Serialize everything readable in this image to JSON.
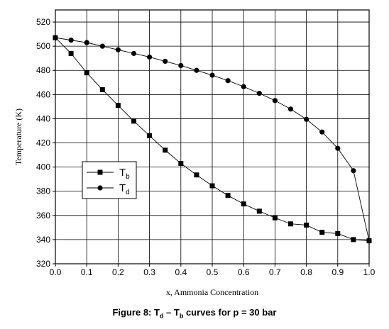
{
  "chart_data": {
    "type": "line",
    "xlabel": "x, Ammonia Concentration",
    "ylabel": "Temperature (K)",
    "xlim": [
      0.0,
      1.0
    ],
    "ylim": [
      320,
      530
    ],
    "xticks": [
      0.0,
      0.1,
      0.2,
      0.3,
      0.4,
      0.5,
      0.6,
      0.7,
      0.8,
      0.9,
      1.0
    ],
    "xtick_labels": [
      "0.0",
      "0.1",
      "0.2",
      "0.3",
      "0.4",
      "0.5",
      "0.6",
      "0.7",
      "0.8",
      "0.9",
      "1.0"
    ],
    "yticks": [
      320,
      340,
      360,
      380,
      400,
      420,
      440,
      460,
      480,
      500,
      520
    ],
    "grid": true,
    "legend_placement": "center-left",
    "series": [
      {
        "name": "Tb",
        "legend_main": "T",
        "legend_sub": "b",
        "marker": "square",
        "x": [
          0.0,
          0.05,
          0.1,
          0.15,
          0.2,
          0.25,
          0.3,
          0.35,
          0.4,
          0.45,
          0.5,
          0.55,
          0.6,
          0.65,
          0.7,
          0.75,
          0.8,
          0.85,
          0.9,
          0.95,
          1.0
        ],
        "y": [
          507,
          494,
          478,
          464,
          451,
          438,
          426,
          414,
          403,
          393.5,
          384.5,
          376.5,
          369.5,
          363.5,
          358,
          353,
          352,
          346,
          345,
          340,
          339
        ]
      },
      {
        "name": "Td",
        "legend_main": "T",
        "legend_sub": "d",
        "marker": "circle",
        "x": [
          0.0,
          0.05,
          0.1,
          0.15,
          0.2,
          0.25,
          0.3,
          0.35,
          0.4,
          0.45,
          0.5,
          0.55,
          0.6,
          0.65,
          0.7,
          0.75,
          0.8,
          0.85,
          0.9,
          0.95,
          1.0
        ],
        "y": [
          507,
          505,
          503,
          500,
          497,
          494,
          491,
          487.5,
          484,
          480,
          476,
          471.5,
          466.5,
          461,
          455,
          448,
          439.5,
          429,
          415.5,
          397,
          339
        ]
      }
    ]
  },
  "caption": {
    "prefix": "Figure 8: T",
    "sub1": "d",
    "middle": " – T",
    "sub2": "b",
    "suffix": " curves for p = 30 bar"
  }
}
